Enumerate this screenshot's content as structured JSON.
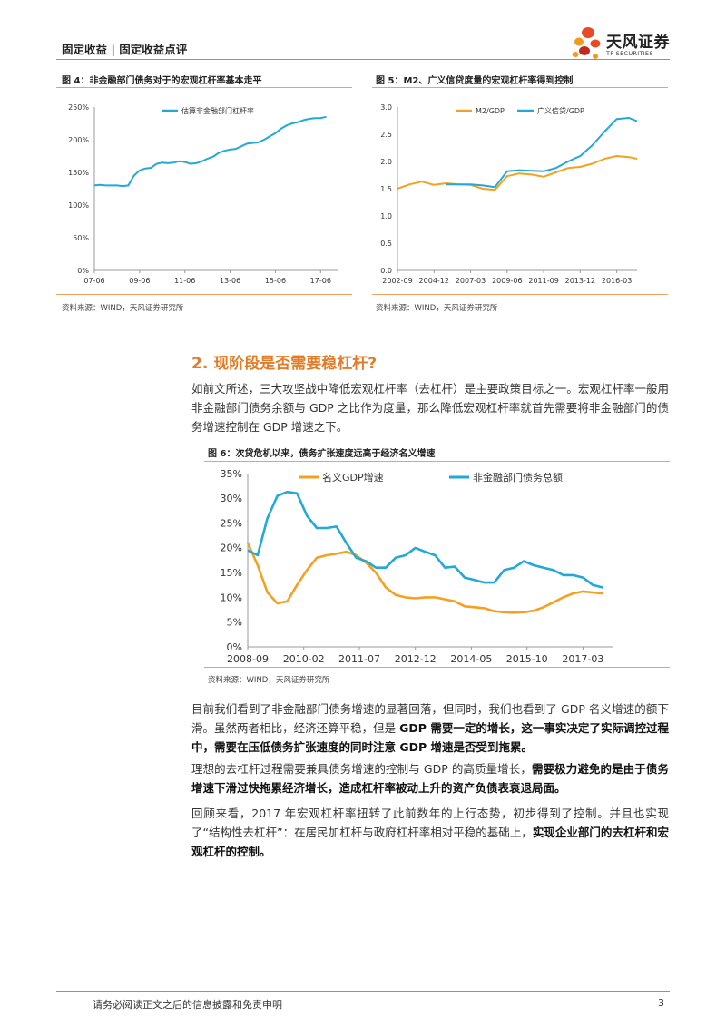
{
  "header": {
    "left": "固定收益 | 固定收益点评",
    "logo_cn": "天风证券",
    "logo_en": "TF SECURITIES"
  },
  "colors": {
    "accent": "#e47c27",
    "blue": "#22a9d8",
    "orange": "#f5a020"
  },
  "fig4": {
    "title": "图 4：非金融部门债务对于的宏观杠杆率基本走平",
    "source": "资料来源：WIND，天风证券研究所",
    "chart_data": {
      "type": "line",
      "title": "",
      "series": [
        {
          "name": "估算非金融部门杠杆率",
          "x": [
            2007.5,
            2007.75,
            2008.0,
            2008.25,
            2008.5,
            2008.75,
            2009.0,
            2009.25,
            2009.5,
            2009.75,
            2010.0,
            2010.25,
            2010.5,
            2010.75,
            2011.0,
            2011.25,
            2011.5,
            2011.75,
            2012.0,
            2012.25,
            2012.5,
            2012.75,
            2013.0,
            2013.25,
            2013.5,
            2013.75,
            2014.0,
            2014.25,
            2014.5,
            2014.75,
            2015.0,
            2015.25,
            2015.5,
            2015.75,
            2016.0,
            2016.25,
            2016.5,
            2016.75,
            2017.0,
            2017.25,
            2017.5,
            2017.75
          ],
          "values": [
            130,
            131,
            130,
            130,
            130,
            129,
            130,
            145,
            153,
            156,
            157,
            163,
            165,
            164,
            165,
            167,
            166,
            163,
            164,
            167,
            171,
            174,
            180,
            183,
            185,
            186,
            190,
            194,
            195,
            196,
            200,
            205,
            210,
            217,
            222,
            225,
            227,
            230,
            232,
            233,
            233,
            235
          ]
        }
      ],
      "ylim": [
        0,
        250
      ],
      "yticks": [
        "0%",
        "50%",
        "100%",
        "150%",
        "200%",
        "250%"
      ],
      "xticks": [
        "07-06",
        "09-06",
        "11-06",
        "13-06",
        "15-06",
        "17-06"
      ],
      "xtick_pos": [
        2007.5,
        2009.5,
        2011.5,
        2013.5,
        2015.5,
        2017.5
      ],
      "xlim": [
        2007.5,
        2018.25
      ],
      "legend": "top-center"
    }
  },
  "fig5": {
    "title": "图 5：M2、广义信贷度量的宏观杠杆率得到控制",
    "source": "资料来源：WIND，天风证券研究所",
    "chart_data": {
      "type": "line",
      "title": "",
      "x": [
        2002.75,
        2003.5,
        2004.25,
        2005.0,
        2005.75,
        2006.5,
        2007.25,
        2008.0,
        2008.75,
        2009.5,
        2010.25,
        2011.0,
        2011.75,
        2012.5,
        2013.25,
        2014.0,
        2014.75,
        2015.5,
        2016.25,
        2017.0,
        2017.5
      ],
      "series": [
        {
          "name": "M2/GDP",
          "values": [
            1.5,
            1.58,
            1.63,
            1.57,
            1.6,
            1.58,
            1.57,
            1.5,
            1.48,
            1.73,
            1.78,
            1.76,
            1.72,
            1.8,
            1.88,
            1.9,
            1.96,
            2.05,
            2.1,
            2.08,
            2.05
          ]
        },
        {
          "name": "广义信贷/GDP",
          "values": [
            null,
            null,
            null,
            null,
            1.58,
            1.58,
            1.58,
            1.56,
            1.53,
            1.82,
            1.84,
            1.83,
            1.82,
            1.88,
            2.0,
            2.1,
            2.3,
            2.55,
            2.78,
            2.8,
            2.74
          ]
        }
      ],
      "ylim": [
        0,
        3
      ],
      "yticks": [
        "0.0",
        "0.5",
        "1.0",
        "1.5",
        "2.0",
        "2.5",
        "3.0"
      ],
      "xticks": [
        "2002-09",
        "2004-12",
        "2007-03",
        "2009-06",
        "2011-09",
        "2013-12",
        "2016-03"
      ],
      "xtick_pos": [
        2002.75,
        2005.0,
        2007.25,
        2009.5,
        2011.75,
        2014.0,
        2016.25
      ],
      "xlim": [
        2002.75,
        2017.5
      ],
      "legend": "top-center"
    }
  },
  "section": {
    "title": "2. 现阶段是否需要稳杠杆?"
  },
  "para1": "如前文所述，三大攻坚战中降低宏观杠杆率（去杠杆）是主要政策目标之一。宏观杠杆率一般用非金融部门债务余额与 GDP 之比作为度量，那么降低宏观杠杆率就首先需要将非金融部门的债务增速控制在 GDP 增速之下。",
  "fig6": {
    "title": "图 6：次贷危机以来，债务扩张速度远高于经济名义增速",
    "source": "资料来源：WIND，天风证券研究所",
    "chart_data": {
      "type": "line",
      "title": "",
      "x": [
        2008.75,
        2009.0,
        2009.25,
        2009.5,
        2009.75,
        2010.0,
        2010.25,
        2010.5,
        2010.75,
        2011.0,
        2011.25,
        2011.5,
        2011.75,
        2012.0,
        2012.25,
        2012.5,
        2012.75,
        2013.0,
        2013.25,
        2013.5,
        2013.75,
        2014.0,
        2014.25,
        2014.5,
        2014.75,
        2015.0,
        2015.25,
        2015.5,
        2015.75,
        2016.0,
        2016.25,
        2016.5,
        2016.75,
        2017.0,
        2017.25,
        2017.5,
        2017.75
      ],
      "series": [
        {
          "name": "名义GDP增速",
          "values": [
            21.0,
            16.5,
            11.0,
            8.8,
            9.2,
            12.5,
            15.5,
            18.0,
            18.5,
            18.8,
            19.2,
            18.5,
            17.0,
            15.0,
            12.0,
            10.5,
            10.0,
            9.8,
            10.0,
            10.0,
            9.6,
            9.2,
            8.2,
            8.0,
            7.8,
            7.2,
            7.0,
            6.9,
            7.0,
            7.3,
            8.0,
            9.0,
            10.0,
            10.8,
            11.2,
            11.0,
            10.8
          ]
        },
        {
          "name": "非金融部门债务总额",
          "values": [
            19.5,
            18.5,
            26.0,
            30.5,
            31.3,
            31.0,
            26.5,
            24.0,
            24.0,
            24.3,
            21.0,
            18.0,
            17.3,
            16.0,
            16.0,
            18.0,
            18.5,
            20.0,
            19.2,
            18.5,
            16.0,
            16.2,
            14.0,
            13.5,
            13.0,
            13.0,
            15.5,
            16.0,
            17.3,
            16.5,
            16.0,
            15.5,
            14.5,
            14.5,
            14.0,
            12.5,
            12.0
          ]
        }
      ],
      "ylim": [
        0,
        35
      ],
      "yticks": [
        "0%",
        "5%",
        "10%",
        "15%",
        "20%",
        "25%",
        "30%",
        "35%"
      ],
      "xticks": [
        "2008-09",
        "2010-02",
        "2011-07",
        "2012-12",
        "2014-05",
        "2015-10",
        "2017-03"
      ],
      "xtick_pos": [
        2008.75,
        2010.17,
        2011.58,
        2013.0,
        2014.42,
        2015.83,
        2017.25
      ],
      "xlim": [
        2008.75,
        2018.0
      ],
      "legend": "top"
    }
  },
  "para2": {
    "a": "目前我们看到了非金融部门债务增速的显著回落，但同时，我们也看到了 GDP 名义增速的额下滑。虽然两者相比，经济还算平稳，但是 ",
    "b": "GDP 需要一定的增长，这一事实决定了实际调控过程中，需要在压低债务扩张速度的同时注意 GDP 增速是否受到拖累。"
  },
  "para3": {
    "a": "理想的去杠杆过程需要兼具债务增速的控制与 GDP 的高质量增长，",
    "b": "需要极力避免的是由于债务增速下滑过快拖累经济增长，造成杠杆率被动上升的资产负债表衰退局面。"
  },
  "para4": {
    "a": "回顾来看，2017 年宏观杠杆率扭转了此前数年的上行态势，初步得到了控制。并且也实现了“结构性去杠杆”：在居民加杠杆与政府杠杆率相对平稳的基础上，",
    "b": "实现企业部门的去杠杆和宏观杠杆的控制。"
  },
  "footer": {
    "disclaimer": "请务必阅读正文之后的信息披露和免责申明",
    "page": "3"
  }
}
